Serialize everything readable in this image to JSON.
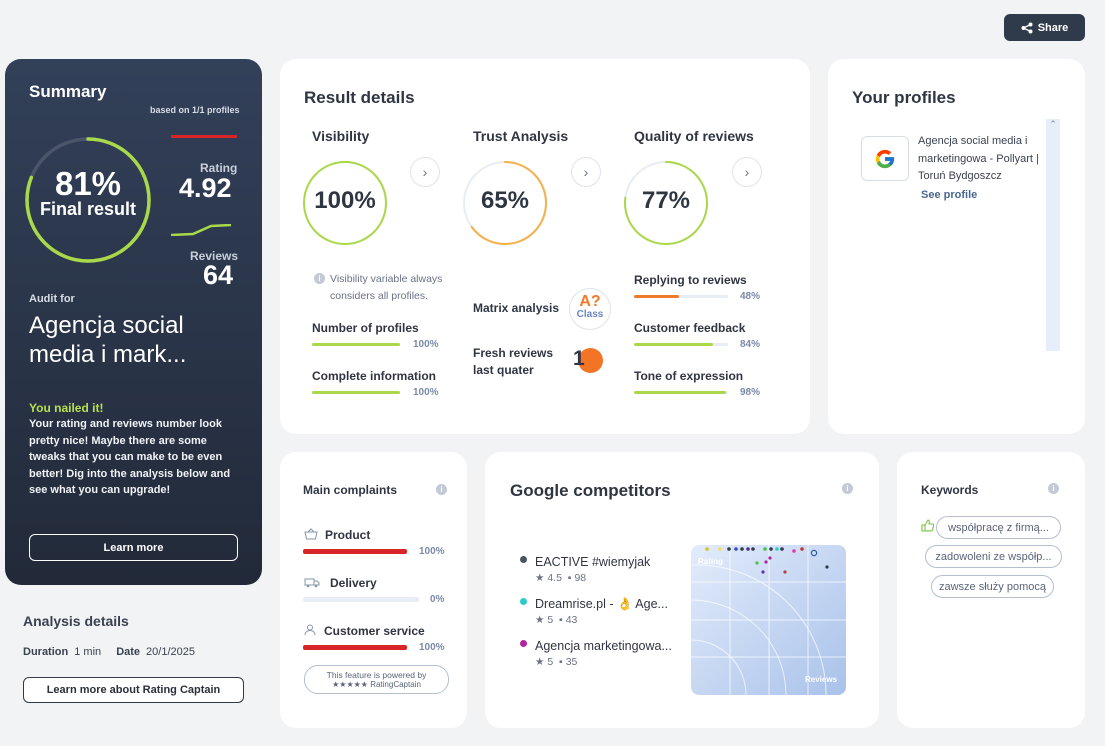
{
  "share": {
    "label": "Share"
  },
  "summary": {
    "title": "Summary",
    "based_on": "based on 1/1 profiles",
    "final_pct": "81%",
    "final_label": "Final result",
    "final_fraction": 0.81,
    "rating_label": "Rating",
    "rating_value": "4.92",
    "reviews_label": "Reviews",
    "reviews_value": "64",
    "audit_label": "Audit for",
    "audit_name": "Agencja social media i mark...",
    "nailed": "You nailed it!",
    "description": "Your rating and reviews number look pretty nice! Maybe there are some tweaks that you can make to be even better! Dig into the analysis below and see what you can upgrade!",
    "learn_more": "Learn more"
  },
  "analysis": {
    "title": "Analysis details",
    "duration_label": "Duration",
    "duration_value": "1 min",
    "date_label": "Date",
    "date_value": "20/1/2025",
    "learn_button": "Learn more about Rating Captain"
  },
  "result": {
    "title": "Result details",
    "visibility": {
      "title": "Visibility",
      "pct": "100%",
      "fraction": 1.0,
      "note": "Visibility variable always considers all profiles.",
      "items": [
        {
          "label": "Number of profiles",
          "pct": "100%",
          "fraction": 1.0
        },
        {
          "label": "Complete information",
          "pct": "100%",
          "fraction": 1.0
        }
      ]
    },
    "trust": {
      "title": "Trust Analysis",
      "pct": "65%",
      "fraction": 0.65,
      "matrix_label": "Matrix analysis",
      "matrix_badge": "A?",
      "matrix_class": "Class",
      "fresh_label": "Fresh reviews last quater",
      "fresh_value": "1"
    },
    "quality": {
      "title": "Quality of reviews",
      "pct": "77%",
      "fraction": 0.77,
      "items": [
        {
          "label": "Replying to reviews",
          "pct": "48%",
          "fraction": 0.48,
          "color": "#f07a2a"
        },
        {
          "label": "Customer feedback",
          "pct": "84%",
          "fraction": 0.84,
          "color": "#a9d94a"
        },
        {
          "label": "Tone of expression",
          "pct": "98%",
          "fraction": 0.98,
          "color": "#a9d94a"
        }
      ]
    }
  },
  "profiles": {
    "title": "Your profiles",
    "name": "Agencja social media i marketingowa - Pollyart | Toruń Bydgoszcz",
    "see_profile": "See profile"
  },
  "complaints": {
    "title": "Main complaints",
    "items": [
      {
        "label": "Product",
        "pct": "100%",
        "fraction": 1.0,
        "icon": "basket-icon"
      },
      {
        "label": "Delivery",
        "pct": "0%",
        "fraction": 0.0,
        "icon": "truck-icon"
      },
      {
        "label": "Customer service",
        "pct": "100%",
        "fraction": 1.0,
        "icon": "person-icon"
      }
    ],
    "powered_line1": "This feature is powered by",
    "powered_line2": "★★★★★ RatingCaptain"
  },
  "competitors": {
    "title": "Google competitors",
    "items": [
      {
        "name": "EACTIVE #wiemyjak",
        "rating": "4.5",
        "reviews": "98",
        "color": "#4a5563"
      },
      {
        "name": "Dreamrise.pl - 👌 Age...",
        "rating": "5",
        "reviews": "43",
        "color": "#2ec9c9"
      },
      {
        "name": "Agencja marketingowa...",
        "rating": "5",
        "reviews": "35",
        "color": "#b0269e"
      }
    ],
    "chart_rating_label": "Rating",
    "chart_reviews_label": "Reviews"
  },
  "keywords": {
    "title": "Keywords",
    "items": [
      "współpracę z firmą...",
      "zadowoleni ze współp...",
      "zawsze służy pomocą"
    ]
  },
  "colors": {
    "green": "#a9d94a",
    "orange": "#f07a2a",
    "red": "#d8252a",
    "gauge_trust": "#f5b04a"
  }
}
